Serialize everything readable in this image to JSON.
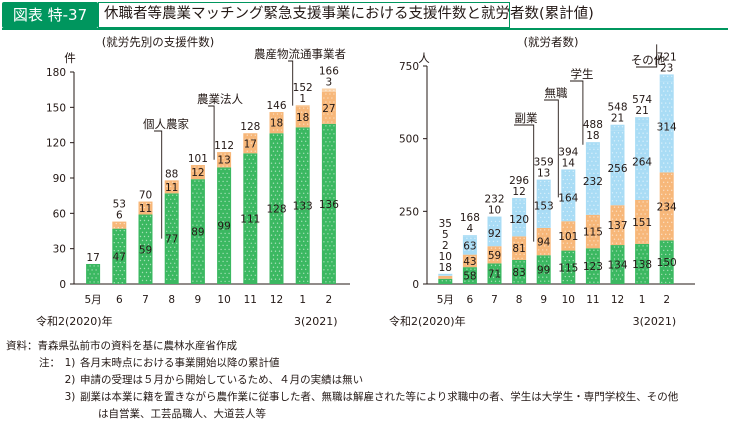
{
  "header": {
    "figure_label": "図表 特-37",
    "title": "休職者等農業マッチング緊急支援事業における支援件数と就労者数(累計値)"
  },
  "chart_data": [
    {
      "type": "bar",
      "stacked": true,
      "title": "(就労先別の支援件数)",
      "ylabel": "件",
      "ylim": [
        0,
        180
      ],
      "yticks": [
        0,
        30,
        60,
        90,
        120,
        150,
        180
      ],
      "categories": [
        "5月",
        "6",
        "7",
        "8",
        "9",
        "10",
        "11",
        "12",
        "1",
        "2"
      ],
      "year_labels": {
        "start": "令和2(2020)年",
        "end": "3(2021)"
      },
      "series": [
        {
          "name": "個人農家",
          "color": "#3bb861",
          "values": [
            17,
            47,
            59,
            77,
            89,
            99,
            111,
            128,
            133,
            136
          ]
        },
        {
          "name": "農業法人",
          "color": "#f7b779",
          "values": [
            0,
            6,
            11,
            11,
            12,
            13,
            17,
            18,
            18,
            27
          ]
        },
        {
          "name": "農産物流通事業者",
          "color": "#fad2a8",
          "values": [
            0,
            0,
            0,
            0,
            0,
            0,
            0,
            0,
            1,
            3
          ]
        }
      ],
      "segment_labels": [
        [
          "",
          "47",
          "59",
          "77",
          "89",
          "99",
          "111",
          "128",
          "133",
          "136"
        ],
        [
          "",
          "6",
          "11",
          "11",
          "12",
          "13",
          "17",
          "18",
          "18",
          "27"
        ],
        [
          "",
          "",
          "",
          "",
          "",
          "",
          "",
          "",
          "1",
          "3"
        ]
      ],
      "totals": [
        "17",
        "53",
        "70",
        "88",
        "101",
        "112",
        "128",
        "146",
        "152",
        "166"
      ],
      "grid": false,
      "legend": "callouts"
    },
    {
      "type": "bar",
      "stacked": true,
      "title": "(就労者数)",
      "ylabel": "人",
      "ylim": [
        0,
        750
      ],
      "yticks": [
        0,
        250,
        500,
        750
      ],
      "categories": [
        "5月",
        "6",
        "7",
        "8",
        "9",
        "10",
        "11",
        "12",
        "1",
        "2"
      ],
      "year_labels": {
        "start": "令和2(2020)年",
        "end": "3(2021)"
      },
      "series": [
        {
          "name": "休職者等",
          "color": "#3bb861",
          "values": [
            18,
            58,
            71,
            83,
            99,
            115,
            123,
            134,
            138,
            150
          ]
        },
        {
          "name": "副業",
          "color": "#f7b779",
          "values": [
            10,
            43,
            59,
            81,
            94,
            101,
            115,
            137,
            151,
            234
          ]
        },
        {
          "name": "無職",
          "color": "#a9dcf5",
          "values": [
            2,
            63,
            92,
            120,
            153,
            164,
            232,
            256,
            264,
            314
          ]
        },
        {
          "name": "学生",
          "color": "#a9dcf5",
          "values": [
            5,
            4,
            10,
            12,
            13,
            14,
            18,
            21,
            21,
            23
          ]
        },
        {
          "name": "その他",
          "color": "#a9dcf5",
          "values": [
            0,
            0,
            0,
            0,
            0,
            0,
            0,
            0,
            0,
            0
          ]
        }
      ],
      "segment_labels": [
        [
          "18",
          "58",
          "71",
          "83",
          "99",
          "115",
          "123",
          "134",
          "138",
          "150"
        ],
        [
          "10",
          "43",
          "59",
          "81",
          "94",
          "101",
          "115",
          "137",
          "151",
          "234"
        ],
        [
          "2",
          "63",
          "92",
          "120",
          "153",
          "164",
          "232",
          "256",
          "264",
          "314"
        ],
        [
          "5",
          "4",
          "10",
          "12",
          "13",
          "14",
          "18",
          "21",
          "21",
          "23"
        ]
      ],
      "totals": [
        "35",
        "168",
        "232",
        "296",
        "359",
        "394",
        "488",
        "548",
        "574",
        "721"
      ],
      "grid": false,
      "legend": "callouts"
    }
  ],
  "notes": {
    "source_key": "資料：",
    "source": "青森県弘前市の資料を基に農林水産省作成",
    "notes_key": "注：",
    "items": [
      {
        "num": "1)",
        "text": "各月末時点における事業開始以降の累計値"
      },
      {
        "num": "2)",
        "text": "申請の受理は５月から開始しているため、４月の実績は無い"
      },
      {
        "num": "3)",
        "text": "副業は本業に籍を置きながら農作業に従事した者、無職は解雇された等により求職中の者、学生は大学生・専門学校生、その他"
      }
    ],
    "continuation": "は自営業、工芸品職人、大道芸人等"
  }
}
